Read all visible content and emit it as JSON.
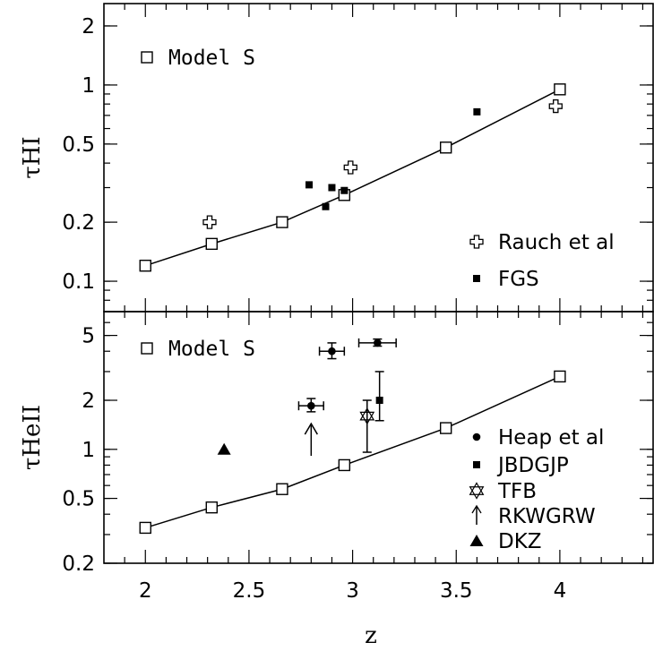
{
  "chart_data": [
    {
      "type": "scatter",
      "panel": "top",
      "ylabel": "τHI",
      "y_scale": "log",
      "ylim": [
        0.07,
        2.6
      ],
      "xlim": [
        1.8,
        4.45
      ],
      "y_ticks": [
        "0.1",
        "0.2",
        "0.5",
        "1",
        "2"
      ],
      "series": [
        {
          "name": "Model S",
          "marker": "open-square",
          "connected": true,
          "x": [
            2.0,
            2.32,
            2.66,
            2.96,
            3.45,
            4.0
          ],
          "y": [
            0.12,
            0.155,
            0.2,
            0.275,
            0.48,
            0.95
          ]
        },
        {
          "name": "Rauch et al",
          "marker": "open-cross",
          "x": [
            2.31,
            2.99,
            3.98
          ],
          "y": [
            0.2,
            0.38,
            0.78
          ]
        },
        {
          "name": "FGS",
          "marker": "filled-square",
          "x": [
            2.79,
            2.87,
            2.9,
            2.96,
            3.6
          ],
          "y": [
            0.31,
            0.24,
            0.3,
            0.29,
            0.73
          ]
        }
      ]
    },
    {
      "type": "scatter",
      "panel": "bottom",
      "xlabel": "z",
      "ylabel": "τHeII",
      "y_scale": "log",
      "ylim": [
        0.2,
        7.0
      ],
      "xlim": [
        1.8,
        4.45
      ],
      "x_ticks": [
        "2",
        "2.5",
        "3",
        "3.5",
        "4"
      ],
      "y_ticks": [
        "0.2",
        "0.5",
        "1",
        "2",
        "5"
      ],
      "series": [
        {
          "name": "Model S",
          "marker": "open-square",
          "connected": true,
          "x": [
            2.0,
            2.32,
            2.66,
            2.96,
            3.45,
            4.0
          ],
          "y": [
            0.33,
            0.44,
            0.57,
            0.8,
            1.35,
            2.8
          ]
        },
        {
          "name": "Heap et al",
          "marker": "filled-circle",
          "points": [
            {
              "x": 2.8,
              "y": 1.85,
              "xerr": 0.06,
              "ylo": 1.7,
              "yhi": 2.05
            },
            {
              "x": 2.9,
              "y": 4.0,
              "xerr": 0.06,
              "ylo": 3.6,
              "yhi": 4.5
            },
            {
              "x": 3.12,
              "y": 4.5,
              "xerr": 0.09,
              "ylo": 4.3,
              "yhi": 4.75
            }
          ]
        },
        {
          "name": "JBDGJP",
          "marker": "filled-square",
          "points": [
            {
              "x": 3.13,
              "y": 2.0,
              "ylo": 1.5,
              "yhi": 3.0
            }
          ]
        },
        {
          "name": "TFB",
          "marker": "open-star",
          "points": [
            {
              "x": 3.07,
              "y": 1.6,
              "ylo": 0.96,
              "yhi": 2.0
            }
          ]
        },
        {
          "name": "RKWGRW",
          "marker": "up-arrow",
          "points": [
            {
              "x": 2.8,
              "y": 1.3,
              "lower_limit": true
            }
          ]
        },
        {
          "name": "DKZ",
          "marker": "filled-triangle",
          "points": [
            {
              "x": 2.38,
              "y": 1.0
            }
          ]
        }
      ]
    }
  ]
}
